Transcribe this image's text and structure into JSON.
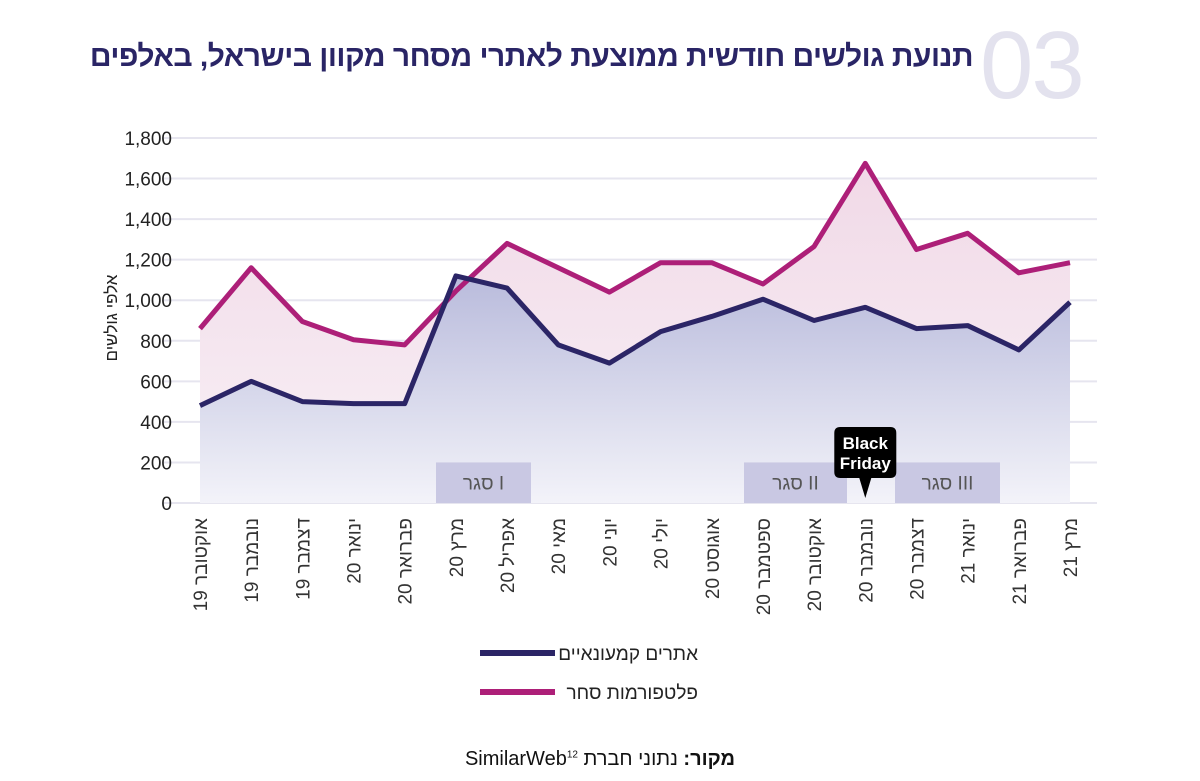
{
  "header": {
    "number": "03",
    "title": "תנועת גולשים חודשית ממוצעת לאתרי מסחר מקוון בישראל, באלפים"
  },
  "source": {
    "label": "מקור:",
    "text": "נתוני חברת SimilarWeb",
    "footnote": "12"
  },
  "chart_data": {
    "type": "line",
    "title": "תנועת גולשים חודשית ממוצעת לאתרי מסחר מקוון בישראל, באלפים",
    "ylabel": "אלפי גולשים",
    "xlabel": "",
    "ylim": [
      0,
      1800
    ],
    "yticks": [
      0,
      200,
      400,
      600,
      800,
      1000,
      1200,
      1400,
      1600,
      1800
    ],
    "ytick_labels": [
      "0",
      "200",
      "400",
      "600",
      "800",
      "1,000",
      "1,200",
      "1,400",
      "1,600",
      "1,800"
    ],
    "grid": true,
    "legend": "bottom",
    "categories": [
      "אוקטובר 19",
      "נובמבר 19",
      "דצמבר 19",
      "ינואר 20",
      "פברואר 20",
      "מרץ 20",
      "אפריל 20",
      "מאי 20",
      "יוני 20",
      "יולי 20",
      "אוגוסט 20",
      "ספטמבר 20",
      "אוקטובר 20",
      "נובמבר 20",
      "דצמבר 20",
      "ינואר 21",
      "פברואר 21",
      "מרץ 21"
    ],
    "series": [
      {
        "name": "אתרים קמעונאיים",
        "color": "#2b2566",
        "values": [
          480,
          600,
          500,
          490,
          490,
          1120,
          1060,
          780,
          690,
          845,
          920,
          1005,
          900,
          965,
          860,
          875,
          755,
          990
        ]
      },
      {
        "name": "פלטפורמות סחר",
        "color": "#ad1f78",
        "values": [
          860,
          1160,
          895,
          805,
          780,
          1045,
          1280,
          1160,
          1040,
          1185,
          1185,
          1080,
          1265,
          1675,
          1250,
          1330,
          1135,
          1185
        ]
      }
    ],
    "annotations": [
      {
        "type": "band",
        "label": "סגר I",
        "from": "פברואר 20",
        "to": "מרץ 20 – אפריל 20",
        "y": [
          0,
          200
        ]
      },
      {
        "type": "band",
        "label": "סגר II",
        "from": "ספטמבר 20",
        "to": "אוקטובר 20",
        "y": [
          0,
          200
        ]
      },
      {
        "type": "band",
        "label": "סגר III",
        "from": "דצמבר 20",
        "to": "ינואר 21",
        "y": [
          0,
          200
        ]
      },
      {
        "type": "callout",
        "label_line1": "Black",
        "label_line2": "Friday",
        "at": "נובמבר 20"
      }
    ],
    "band_color": "#c9c8e3"
  }
}
